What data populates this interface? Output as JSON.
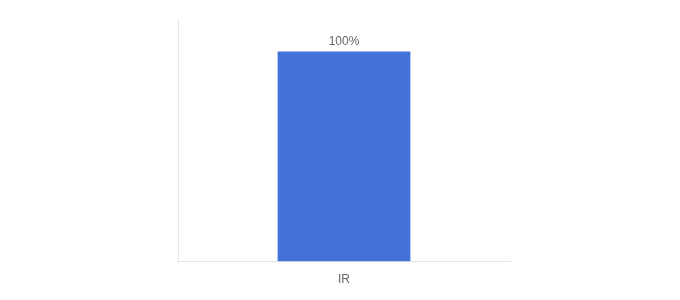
{
  "chart_data": {
    "type": "bar",
    "categories": [
      "IR"
    ],
    "values": [
      100
    ],
    "value_labels": [
      "100%"
    ],
    "color": "#4472d9",
    "ylim": [
      0,
      115
    ],
    "yticks": [],
    "grid": false,
    "tick_labels": "x",
    "data_labels": true
  }
}
